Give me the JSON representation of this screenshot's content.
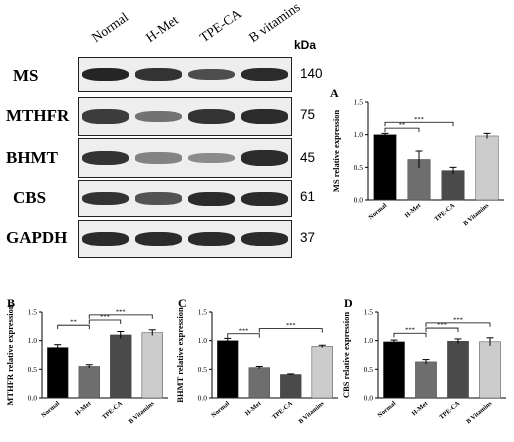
{
  "lanes": [
    "Normal",
    "H-Met",
    "TPE-CA",
    "B vitamins"
  ],
  "kda_label": "kDa",
  "blots": [
    {
      "name": "MS",
      "mw": "140",
      "intensity": [
        0.95,
        0.85,
        0.7,
        0.9
      ]
    },
    {
      "name": "MTHFR",
      "mw": "75",
      "intensity": [
        0.8,
        0.45,
        0.85,
        0.9
      ]
    },
    {
      "name": "BHMT",
      "mw": "45",
      "intensity": [
        0.85,
        0.35,
        0.3,
        0.9
      ]
    },
    {
      "name": "CBS",
      "mw": "61",
      "intensity": [
        0.85,
        0.65,
        0.9,
        0.9
      ]
    },
    {
      "name": "GAPDH",
      "mw": "37",
      "intensity": [
        0.9,
        0.9,
        0.9,
        0.9
      ]
    }
  ],
  "chart_data": [
    {
      "panel": "A",
      "type": "bar",
      "categories": [
        "Normal",
        "H-Met",
        "TPE-CA",
        "B Vitamins"
      ],
      "values": [
        1.0,
        0.62,
        0.45,
        0.98
      ],
      "errors": [
        0.02,
        0.13,
        0.05,
        0.04
      ],
      "colors": [
        "#000000",
        "#6e6e6e",
        "#4a4a4a",
        "#cccccc"
      ],
      "ylabel": "MS relative expression",
      "ylim": [
        0,
        1.5
      ],
      "yticks": [
        "0.0",
        "0.5",
        "1.0",
        "1.5"
      ],
      "significance": [
        {
          "from": 0,
          "to": 1,
          "label": "**"
        },
        {
          "from": 0,
          "to": 2,
          "label": "***"
        }
      ]
    },
    {
      "panel": "B",
      "type": "bar",
      "categories": [
        "Normal",
        "H-Met",
        "TPE-CA",
        "B Vitamins"
      ],
      "values": [
        0.88,
        0.55,
        1.1,
        1.14
      ],
      "errors": [
        0.05,
        0.03,
        0.06,
        0.05
      ],
      "colors": [
        "#000000",
        "#6e6e6e",
        "#4a4a4a",
        "#cccccc"
      ],
      "ylabel": "MTHFR relative expression",
      "ylim": [
        0,
        1.5
      ],
      "yticks": [
        "0.0",
        "0.5",
        "1.0",
        "1.5"
      ],
      "significance": [
        {
          "from": 0,
          "to": 1,
          "label": "**"
        },
        {
          "from": 1,
          "to": 2,
          "label": "***"
        },
        {
          "from": 1,
          "to": 3,
          "label": "***"
        }
      ]
    },
    {
      "panel": "C",
      "type": "bar",
      "categories": [
        "Normal",
        "H-Met",
        "TPE-CA",
        "B Vitamins"
      ],
      "values": [
        1.0,
        0.53,
        0.41,
        0.9
      ],
      "errors": [
        0.04,
        0.02,
        0.01,
        0.02
      ],
      "colors": [
        "#000000",
        "#6e6e6e",
        "#4a4a4a",
        "#cccccc"
      ],
      "ylabel": "BHMT relative expression",
      "ylim": [
        0,
        1.5
      ],
      "yticks": [
        "0.0",
        "0.5",
        "1.0",
        "1.5"
      ],
      "significance": [
        {
          "from": 0,
          "to": 1,
          "label": "***"
        },
        {
          "from": 1,
          "to": 3,
          "label": "***"
        }
      ]
    },
    {
      "panel": "D",
      "type": "bar",
      "categories": [
        "Normal",
        "H-Met",
        "TPE-CA",
        "B Vitamins"
      ],
      "values": [
        0.98,
        0.63,
        0.99,
        0.98
      ],
      "errors": [
        0.03,
        0.04,
        0.04,
        0.07
      ],
      "colors": [
        "#000000",
        "#6e6e6e",
        "#4a4a4a",
        "#cccccc"
      ],
      "ylabel": "CBS relative expression",
      "ylim": [
        0,
        1.5
      ],
      "yticks": [
        "0.0",
        "0.5",
        "1.0",
        "1.5"
      ],
      "significance": [
        {
          "from": 0,
          "to": 1,
          "label": "***"
        },
        {
          "from": 1,
          "to": 2,
          "label": "***"
        },
        {
          "from": 1,
          "to": 3,
          "label": "***"
        }
      ]
    }
  ]
}
